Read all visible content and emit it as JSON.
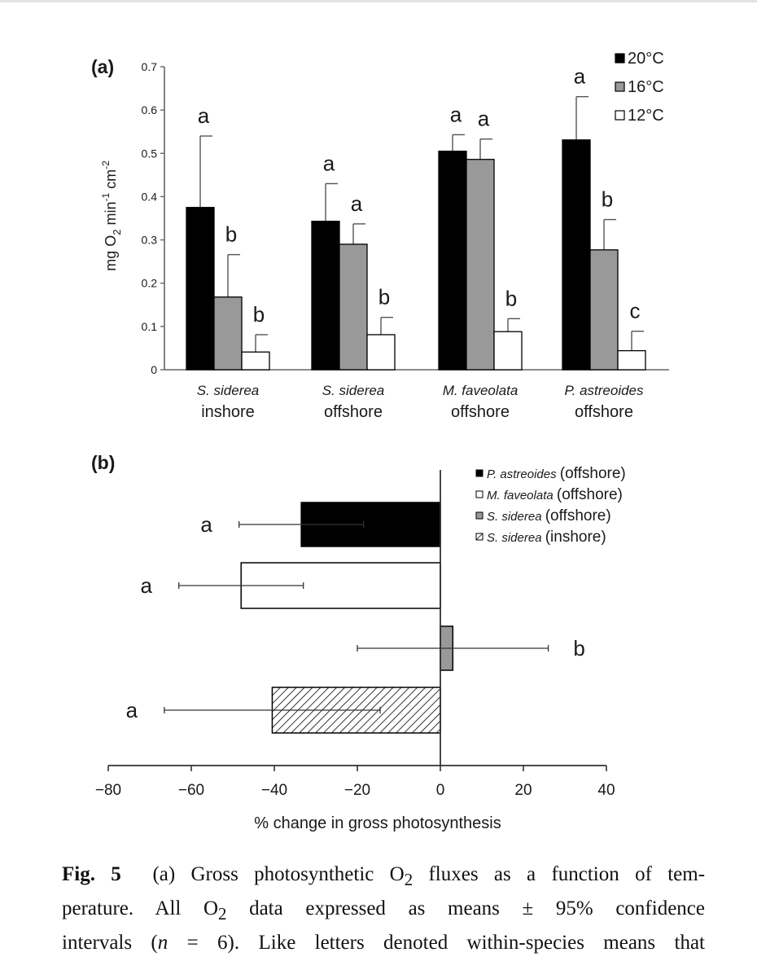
{
  "chart_data": [
    {
      "type": "bar",
      "panel_label": "(a)",
      "title": "",
      "xlabel": "",
      "ylabel": "mg O2 min-1 cm-2",
      "ylabel_parts": {
        "a": "mg O",
        "sub": "2",
        "b": " min",
        "sup1": "-1",
        "c": " cm",
        "sup2": "-2"
      },
      "ylim": [
        0,
        0.7
      ],
      "yticks": [
        "0",
        "0.1",
        "0.2",
        "0.3",
        "0.4",
        "0.5",
        "0.6",
        "0.7"
      ],
      "categories": [
        {
          "species": "S. siderea",
          "site": "inshore"
        },
        {
          "species": "S. siderea",
          "site": "offshore"
        },
        {
          "species": "M. faveolata",
          "site": "offshore"
        },
        {
          "species": "P. astreoides",
          "site": "offshore"
        }
      ],
      "series": [
        {
          "name": "20°C",
          "color": "#000000",
          "values": [
            0.375,
            0.343,
            0.505,
            0.531
          ],
          "ci": [
            0.165,
            0.087,
            0.038,
            0.1
          ],
          "letters": [
            "a",
            "a",
            "a",
            "a"
          ]
        },
        {
          "name": "16°C",
          "color": "#999999",
          "values": [
            0.168,
            0.29,
            0.486,
            0.277
          ],
          "ci": [
            0.098,
            0.047,
            0.047,
            0.07
          ],
          "letters": [
            "b",
            "a",
            "a",
            "b"
          ]
        },
        {
          "name": "12°C",
          "color": "#ffffff",
          "values": [
            0.041,
            0.081,
            0.088,
            0.044
          ],
          "ci": [
            0.04,
            0.04,
            0.03,
            0.045
          ],
          "letters": [
            "b",
            "b",
            "b",
            "c"
          ]
        }
      ],
      "legend_position": "top-right",
      "grid": false
    },
    {
      "type": "bar",
      "orientation": "horizontal",
      "panel_label": "(b)",
      "title": "",
      "xlabel": "% change in gross photosynthesis",
      "ylabel": "",
      "xlim": [
        -80,
        40
      ],
      "xticks": [
        "-80",
        "-60",
        "-40",
        "-20",
        "0",
        "20",
        "40"
      ],
      "series": [
        {
          "name": "P. astreoides",
          "site": "(offshore)",
          "fill": "solid-black",
          "value": -33.5,
          "ci": 15,
          "letter": "a"
        },
        {
          "name": "M. faveolata",
          "site": "(offshore)",
          "fill": "white",
          "value": -48,
          "ci": 15,
          "letter": "a"
        },
        {
          "name": "S. siderea",
          "site": "(offshore)",
          "fill": "grey",
          "value": 3,
          "ci": 23,
          "letter": "b"
        },
        {
          "name": "S. siderea",
          "site": "(inshore)",
          "fill": "hatched",
          "value": -40.5,
          "ci": 26,
          "letter": "a"
        }
      ],
      "legend_position": "top-right",
      "grid": false
    }
  ],
  "caption": {
    "fig_label": "Fig. 5",
    "line1": "(a) Gross photosynthetic O",
    "line1_sub": "2",
    "line1_end": " fluxes as a function of tem-",
    "line2_a": "perature. All O",
    "line2_sub": "2",
    "line2_b": " data expressed as means ± 95% confidence",
    "line3_a": "intervals (",
    "line3_n": "n",
    "line3_b": " = 6). Like letters denoted within-species means that"
  }
}
